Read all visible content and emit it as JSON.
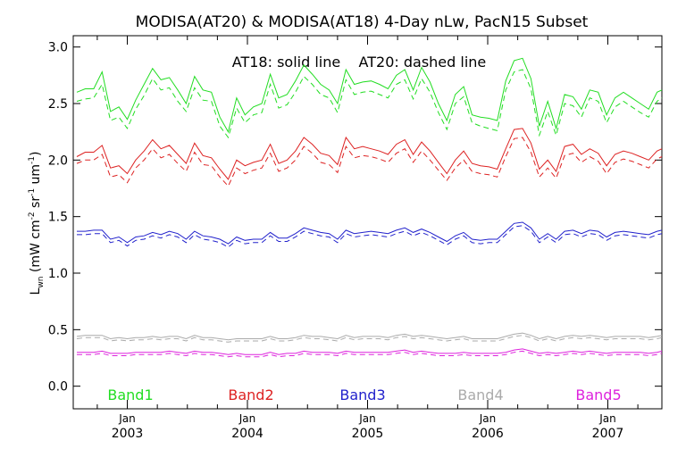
{
  "chart_data": {
    "type": "line",
    "title": "MODISA(AT20) & MODISA(AT18) 4-Day nLw, PacN15 Subset",
    "annotation": "AT18: solid line    AT20: dashed line",
    "xlabel": "",
    "ylabel_main": "L",
    "ylabel_sub": "wn",
    "ylabel_rest": "(mW cm",
    "ylabel_exp1": "-2",
    "ylabel_mid": " sr",
    "ylabel_exp2": "-1",
    "ylabel_mid2": " um",
    "ylabel_exp3": "-1",
    "ylabel_end": ")",
    "ylim": [
      -0.2,
      3.1
    ],
    "xlim": [
      2002.55,
      2007.45
    ],
    "yticks": [
      0.0,
      0.5,
      1.0,
      1.5,
      2.0,
      2.5,
      3.0
    ],
    "ytick_labels": [
      "0.0",
      "0.5",
      "1.0",
      "1.5",
      "2.0",
      "2.5",
      "3.0"
    ],
    "xticks": [
      {
        "x": 2003.0,
        "top": "Jan",
        "bottom": "2003"
      },
      {
        "x": 2004.0,
        "top": "Jan",
        "bottom": "2004"
      },
      {
        "x": 2005.0,
        "top": "Jan",
        "bottom": "2005"
      },
      {
        "x": 2006.0,
        "top": "Jan",
        "bottom": "2006"
      },
      {
        "x": 2007.0,
        "top": "Jan",
        "bottom": "2007"
      }
    ],
    "grid": false,
    "legend_labels": [
      {
        "text": "Band1",
        "color": "#22dd22"
      },
      {
        "text": "Band2",
        "color": "#dd2222"
      },
      {
        "text": "Band3",
        "color": "#2222cc"
      },
      {
        "text": "Band4",
        "color": "#aaaaaa"
      },
      {
        "text": "Band5",
        "color": "#dd22dd"
      }
    ],
    "x": [
      2002.58,
      2002.65,
      2002.72,
      2002.79,
      2002.86,
      2002.93,
      2003.0,
      2003.07,
      2003.14,
      2003.21,
      2003.28,
      2003.35,
      2003.42,
      2003.49,
      2003.56,
      2003.63,
      2003.7,
      2003.77,
      2003.84,
      2003.91,
      2003.98,
      2004.05,
      2004.12,
      2004.19,
      2004.26,
      2004.33,
      2004.4,
      2004.47,
      2004.54,
      2004.61,
      2004.68,
      2004.75,
      2004.82,
      2004.89,
      2004.96,
      2005.03,
      2005.1,
      2005.17,
      2005.24,
      2005.31,
      2005.38,
      2005.45,
      2005.52,
      2005.59,
      2005.66,
      2005.73,
      2005.8,
      2005.87,
      2005.94,
      2006.01,
      2006.08,
      2006.15,
      2006.22,
      2006.29,
      2006.36,
      2006.43,
      2006.5,
      2006.57,
      2006.64,
      2006.71,
      2006.78,
      2006.85,
      2006.92,
      2006.99,
      2007.06,
      2007.13,
      2007.2,
      2007.27,
      2007.34,
      2007.41,
      2007.45
    ],
    "series": [
      {
        "band": "Band1",
        "dataset": "AT18",
        "style": "solid",
        "color": "#22dd22",
        "values": [
          2.6,
          2.63,
          2.63,
          2.78,
          2.43,
          2.47,
          2.36,
          2.53,
          2.67,
          2.81,
          2.71,
          2.73,
          2.62,
          2.5,
          2.74,
          2.62,
          2.6,
          2.38,
          2.25,
          2.55,
          2.4,
          2.47,
          2.5,
          2.76,
          2.55,
          2.58,
          2.7,
          2.84,
          2.76,
          2.67,
          2.62,
          2.5,
          2.8,
          2.67,
          2.69,
          2.7,
          2.67,
          2.63,
          2.75,
          2.8,
          2.62,
          2.82,
          2.69,
          2.5,
          2.35,
          2.58,
          2.65,
          2.4,
          2.38,
          2.37,
          2.35,
          2.7,
          2.88,
          2.9,
          2.72,
          2.3,
          2.52,
          2.28,
          2.58,
          2.56,
          2.45,
          2.62,
          2.6,
          2.4,
          2.55,
          2.6,
          2.55,
          2.5,
          2.45,
          2.6,
          2.62
        ]
      },
      {
        "band": "Band1",
        "dataset": "AT20",
        "style": "dashed",
        "color": "#22dd22",
        "values": [
          2.52,
          2.54,
          2.55,
          2.67,
          2.35,
          2.38,
          2.28,
          2.45,
          2.57,
          2.72,
          2.62,
          2.64,
          2.52,
          2.43,
          2.64,
          2.53,
          2.52,
          2.3,
          2.2,
          2.46,
          2.33,
          2.4,
          2.42,
          2.67,
          2.46,
          2.49,
          2.6,
          2.74,
          2.67,
          2.58,
          2.55,
          2.42,
          2.71,
          2.58,
          2.6,
          2.61,
          2.58,
          2.55,
          2.67,
          2.71,
          2.54,
          2.72,
          2.6,
          2.42,
          2.27,
          2.5,
          2.56,
          2.33,
          2.3,
          2.28,
          2.26,
          2.62,
          2.78,
          2.8,
          2.63,
          2.22,
          2.43,
          2.22,
          2.5,
          2.48,
          2.38,
          2.55,
          2.52,
          2.33,
          2.47,
          2.52,
          2.47,
          2.42,
          2.38,
          2.52,
          2.55
        ]
      },
      {
        "band": "Band2",
        "dataset": "AT18",
        "style": "solid",
        "color": "#dd2222",
        "values": [
          2.03,
          2.07,
          2.07,
          2.13,
          1.93,
          1.95,
          1.88,
          2.0,
          2.08,
          2.18,
          2.1,
          2.13,
          2.05,
          1.97,
          2.15,
          2.04,
          2.02,
          1.92,
          1.83,
          2.0,
          1.95,
          1.98,
          2.0,
          2.14,
          1.97,
          2.0,
          2.08,
          2.2,
          2.14,
          2.06,
          2.04,
          1.96,
          2.2,
          2.1,
          2.12,
          2.1,
          2.08,
          2.05,
          2.14,
          2.18,
          2.05,
          2.16,
          2.08,
          1.98,
          1.88,
          2.0,
          2.08,
          1.97,
          1.95,
          1.94,
          1.92,
          2.1,
          2.27,
          2.28,
          2.15,
          1.92,
          2.0,
          1.9,
          2.12,
          2.14,
          2.05,
          2.1,
          2.06,
          1.95,
          2.05,
          2.08,
          2.06,
          2.03,
          2.0,
          2.08,
          2.1
        ]
      },
      {
        "band": "Band2",
        "dataset": "AT20",
        "style": "dashed",
        "color": "#dd2222",
        "values": [
          1.97,
          2.0,
          2.0,
          2.05,
          1.85,
          1.87,
          1.8,
          1.93,
          2.0,
          2.1,
          2.02,
          2.05,
          1.97,
          1.9,
          2.07,
          1.96,
          1.95,
          1.85,
          1.77,
          1.93,
          1.88,
          1.91,
          1.93,
          2.06,
          1.9,
          1.93,
          2.0,
          2.12,
          2.06,
          1.98,
          1.96,
          1.89,
          2.12,
          2.02,
          2.04,
          2.03,
          2.01,
          1.98,
          2.06,
          2.1,
          1.98,
          2.08,
          2.0,
          1.91,
          1.82,
          1.93,
          2.0,
          1.9,
          1.88,
          1.87,
          1.85,
          2.03,
          2.19,
          2.2,
          2.07,
          1.85,
          1.93,
          1.84,
          2.04,
          2.06,
          1.98,
          2.03,
          1.99,
          1.88,
          1.98,
          2.01,
          1.99,
          1.96,
          1.93,
          2.01,
          2.03
        ]
      },
      {
        "band": "Band3",
        "dataset": "AT18",
        "style": "solid",
        "color": "#2222cc",
        "values": [
          1.37,
          1.37,
          1.38,
          1.38,
          1.3,
          1.32,
          1.27,
          1.32,
          1.33,
          1.36,
          1.34,
          1.37,
          1.35,
          1.3,
          1.37,
          1.33,
          1.32,
          1.3,
          1.26,
          1.32,
          1.29,
          1.3,
          1.3,
          1.36,
          1.31,
          1.31,
          1.35,
          1.4,
          1.38,
          1.36,
          1.35,
          1.3,
          1.38,
          1.35,
          1.36,
          1.37,
          1.36,
          1.35,
          1.38,
          1.4,
          1.36,
          1.39,
          1.36,
          1.32,
          1.28,
          1.33,
          1.36,
          1.3,
          1.29,
          1.3,
          1.3,
          1.37,
          1.44,
          1.45,
          1.4,
          1.3,
          1.35,
          1.3,
          1.37,
          1.38,
          1.35,
          1.38,
          1.37,
          1.32,
          1.36,
          1.37,
          1.36,
          1.35,
          1.34,
          1.37,
          1.38
        ]
      },
      {
        "band": "Band3",
        "dataset": "AT20",
        "style": "dashed",
        "color": "#2222cc",
        "values": [
          1.34,
          1.34,
          1.35,
          1.35,
          1.27,
          1.29,
          1.24,
          1.29,
          1.3,
          1.33,
          1.31,
          1.34,
          1.32,
          1.27,
          1.34,
          1.3,
          1.29,
          1.27,
          1.23,
          1.29,
          1.26,
          1.27,
          1.27,
          1.33,
          1.28,
          1.28,
          1.32,
          1.37,
          1.35,
          1.33,
          1.32,
          1.27,
          1.35,
          1.32,
          1.33,
          1.34,
          1.33,
          1.32,
          1.35,
          1.37,
          1.33,
          1.36,
          1.33,
          1.29,
          1.25,
          1.3,
          1.33,
          1.27,
          1.26,
          1.27,
          1.27,
          1.34,
          1.41,
          1.42,
          1.37,
          1.27,
          1.32,
          1.27,
          1.34,
          1.35,
          1.32,
          1.35,
          1.34,
          1.29,
          1.33,
          1.34,
          1.33,
          1.32,
          1.31,
          1.34,
          1.35
        ]
      },
      {
        "band": "Band4",
        "dataset": "AT18",
        "style": "solid",
        "color": "#aaaaaa",
        "values": [
          0.44,
          0.45,
          0.45,
          0.45,
          0.42,
          0.43,
          0.42,
          0.43,
          0.43,
          0.44,
          0.43,
          0.44,
          0.44,
          0.42,
          0.45,
          0.43,
          0.43,
          0.42,
          0.41,
          0.42,
          0.42,
          0.42,
          0.42,
          0.44,
          0.42,
          0.42,
          0.43,
          0.45,
          0.44,
          0.44,
          0.43,
          0.42,
          0.45,
          0.43,
          0.44,
          0.44,
          0.44,
          0.43,
          0.45,
          0.46,
          0.44,
          0.45,
          0.44,
          0.43,
          0.42,
          0.43,
          0.44,
          0.42,
          0.42,
          0.42,
          0.42,
          0.44,
          0.46,
          0.47,
          0.45,
          0.42,
          0.44,
          0.42,
          0.44,
          0.45,
          0.44,
          0.45,
          0.44,
          0.43,
          0.44,
          0.44,
          0.44,
          0.44,
          0.43,
          0.44,
          0.45
        ]
      },
      {
        "band": "Band4",
        "dataset": "AT20",
        "style": "dashed",
        "color": "#aaaaaa",
        "values": [
          0.42,
          0.43,
          0.43,
          0.43,
          0.4,
          0.41,
          0.4,
          0.41,
          0.41,
          0.42,
          0.41,
          0.42,
          0.42,
          0.4,
          0.43,
          0.41,
          0.41,
          0.4,
          0.39,
          0.4,
          0.4,
          0.4,
          0.4,
          0.42,
          0.4,
          0.4,
          0.41,
          0.43,
          0.42,
          0.42,
          0.41,
          0.4,
          0.43,
          0.41,
          0.42,
          0.42,
          0.42,
          0.41,
          0.43,
          0.44,
          0.42,
          0.43,
          0.42,
          0.41,
          0.4,
          0.41,
          0.42,
          0.4,
          0.4,
          0.4,
          0.4,
          0.42,
          0.44,
          0.45,
          0.43,
          0.4,
          0.42,
          0.4,
          0.42,
          0.43,
          0.42,
          0.43,
          0.42,
          0.41,
          0.42,
          0.42,
          0.42,
          0.42,
          0.41,
          0.42,
          0.43
        ]
      },
      {
        "band": "Band5",
        "dataset": "AT18",
        "style": "solid",
        "color": "#dd22dd",
        "values": [
          0.3,
          0.3,
          0.3,
          0.31,
          0.29,
          0.29,
          0.29,
          0.3,
          0.3,
          0.3,
          0.3,
          0.31,
          0.3,
          0.29,
          0.31,
          0.3,
          0.3,
          0.29,
          0.28,
          0.29,
          0.28,
          0.28,
          0.28,
          0.3,
          0.28,
          0.29,
          0.29,
          0.31,
          0.3,
          0.3,
          0.3,
          0.29,
          0.31,
          0.3,
          0.3,
          0.3,
          0.3,
          0.3,
          0.31,
          0.32,
          0.3,
          0.31,
          0.3,
          0.29,
          0.29,
          0.29,
          0.3,
          0.29,
          0.29,
          0.29,
          0.29,
          0.3,
          0.32,
          0.33,
          0.31,
          0.29,
          0.3,
          0.29,
          0.3,
          0.31,
          0.3,
          0.31,
          0.3,
          0.29,
          0.3,
          0.3,
          0.3,
          0.3,
          0.29,
          0.3,
          0.31
        ]
      },
      {
        "band": "Band5",
        "dataset": "AT20",
        "style": "dashed",
        "color": "#dd22dd",
        "values": [
          0.28,
          0.28,
          0.28,
          0.29,
          0.27,
          0.27,
          0.27,
          0.28,
          0.28,
          0.28,
          0.28,
          0.29,
          0.28,
          0.27,
          0.29,
          0.28,
          0.28,
          0.27,
          0.26,
          0.27,
          0.26,
          0.26,
          0.26,
          0.28,
          0.26,
          0.27,
          0.27,
          0.29,
          0.28,
          0.28,
          0.28,
          0.27,
          0.29,
          0.28,
          0.28,
          0.28,
          0.28,
          0.28,
          0.29,
          0.3,
          0.28,
          0.29,
          0.28,
          0.27,
          0.27,
          0.27,
          0.28,
          0.27,
          0.27,
          0.27,
          0.27,
          0.28,
          0.3,
          0.31,
          0.29,
          0.27,
          0.28,
          0.27,
          0.28,
          0.29,
          0.28,
          0.29,
          0.28,
          0.27,
          0.28,
          0.28,
          0.28,
          0.28,
          0.27,
          0.28,
          0.29
        ]
      }
    ]
  }
}
